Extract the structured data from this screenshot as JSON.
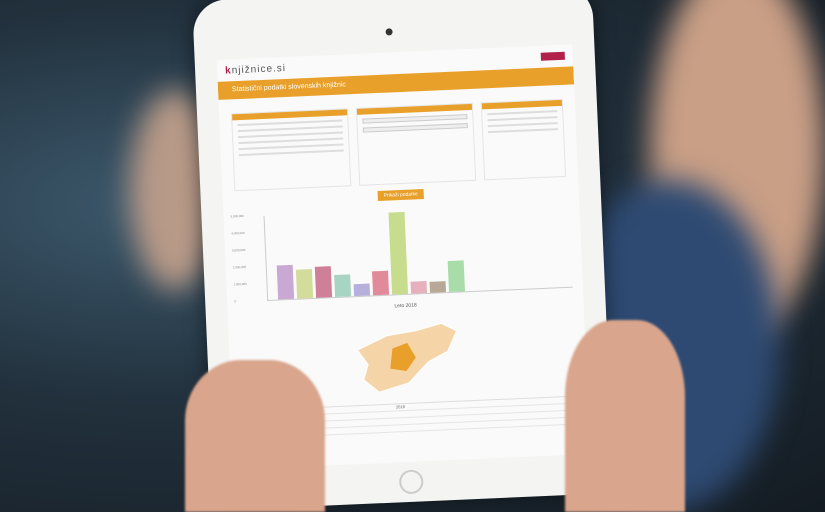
{
  "site": {
    "logo_prefix": "k",
    "logo_rest": "njižnice.si",
    "page_title": "Statistični podatki slovenskih knjižnic",
    "show_button": "Prikaži podatke"
  },
  "colors": {
    "accent": "#e8a02a",
    "logo": "#b0224a"
  },
  "chart_data": {
    "type": "bar",
    "categories": [
      "2018"
    ],
    "xlabel": "Leto 2018",
    "ylim": [
      0,
      5000000
    ],
    "yticks": [
      "0",
      "1,000,000",
      "2,000,000",
      "3,000,000",
      "4,000,000",
      "5,000,000"
    ],
    "series": [
      {
        "values": [
          2000000
        ]
      },
      {
        "values": [
          1700000
        ]
      },
      {
        "values": [
          1800000
        ]
      },
      {
        "values": [
          1300000
        ]
      },
      {
        "values": [
          700000
        ]
      },
      {
        "values": [
          1400000
        ]
      },
      {
        "values": [
          4800000
        ]
      },
      {
        "values": [
          700000
        ]
      },
      {
        "values": [
          650000
        ]
      },
      {
        "values": [
          1800000
        ]
      }
    ],
    "bar_colors": [
      "#c9a9d4",
      "#d3dc9a",
      "#cf7f98",
      "#a8d4c4",
      "#b8b0dc",
      "#e08a9a",
      "#c7dc8c",
      "#e6b0bc",
      "#b8a898",
      "#a8dca8"
    ]
  },
  "table": {
    "header": "2018"
  }
}
